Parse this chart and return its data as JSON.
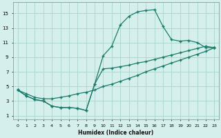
{
  "xlabel": "Humidex (Indice chaleur)",
  "bg_color": "#d5f0ec",
  "grid_color": "#aed8d0",
  "line_color": "#1a7a6a",
  "xlim": [
    -0.5,
    23.5
  ],
  "ylim": [
    0.5,
    16.5
  ],
  "xticks": [
    0,
    1,
    2,
    3,
    4,
    5,
    6,
    7,
    8,
    9,
    10,
    11,
    12,
    13,
    14,
    15,
    16,
    17,
    18,
    19,
    20,
    21,
    22,
    23
  ],
  "yticks": [
    1,
    3,
    5,
    7,
    9,
    11,
    13,
    15
  ],
  "line1_x": [
    0,
    1,
    2,
    3,
    4,
    5,
    6,
    7,
    8,
    9,
    10,
    11,
    12,
    13,
    14,
    15,
    16,
    17,
    18,
    19,
    20,
    21,
    22,
    23
  ],
  "line1_y": [
    4.5,
    4.0,
    3.5,
    3.3,
    3.3,
    3.5,
    3.7,
    4.0,
    4.2,
    4.5,
    5.0,
    5.3,
    5.7,
    6.1,
    6.5,
    7.0,
    7.4,
    7.8,
    8.2,
    8.6,
    9.0,
    9.4,
    9.8,
    10.3
  ],
  "line2_x": [
    0,
    1,
    2,
    3,
    4,
    5,
    6,
    7,
    8,
    9,
    10,
    11,
    12,
    13,
    14,
    15,
    16,
    17,
    18,
    19,
    20,
    21,
    22,
    23
  ],
  "line2_y": [
    4.5,
    3.7,
    3.2,
    3.0,
    2.3,
    2.1,
    2.1,
    2.0,
    1.7,
    5.3,
    9.2,
    10.5,
    13.4,
    14.6,
    15.2,
    15.4,
    15.5,
    13.2,
    11.4,
    11.2,
    11.3,
    11.0,
    10.3,
    10.3
  ],
  "line3_x": [
    0,
    1,
    2,
    3,
    4,
    5,
    6,
    7,
    8,
    9,
    10,
    11,
    12,
    13,
    14,
    15,
    16,
    17,
    18,
    19,
    20,
    21,
    22,
    23
  ],
  "line3_y": [
    4.5,
    3.7,
    3.2,
    3.0,
    2.3,
    2.1,
    2.1,
    2.0,
    1.7,
    5.3,
    7.4,
    7.5,
    7.7,
    7.9,
    8.2,
    8.4,
    8.7,
    9.0,
    9.3,
    9.6,
    9.9,
    10.2,
    10.5,
    10.3
  ]
}
